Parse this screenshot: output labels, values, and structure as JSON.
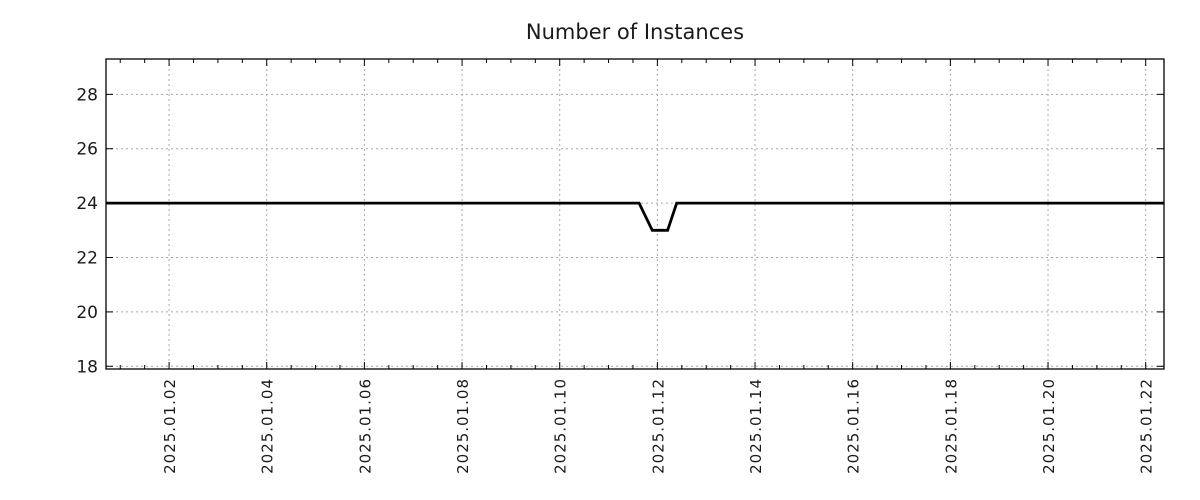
{
  "chart_data": {
    "type": "line",
    "title": "Number of Instances",
    "legend": null,
    "grid": {
      "show": true,
      "color": "#a8a8a8",
      "style": "dashed"
    },
    "border_color": "#000000",
    "background_color": "#ffffff",
    "x_axis": {
      "unit": "date",
      "range": [
        "2024-12-31 17:00",
        "2025-01-22 09:00"
      ],
      "major_tick_step_days": 2,
      "minor_tick_step_days": 0.5,
      "label_rotation_deg": -90,
      "ticks": [
        {
          "day": 2,
          "label": "2025.01.02"
        },
        {
          "day": 4,
          "label": "2025.01.04"
        },
        {
          "day": 6,
          "label": "2025.01.06"
        },
        {
          "day": 8,
          "label": "2025.01.08"
        },
        {
          "day": 10,
          "label": "2025.01.10"
        },
        {
          "day": 12,
          "label": "2025.01.12"
        },
        {
          "day": 14,
          "label": "2025.01.14"
        },
        {
          "day": 16,
          "label": "2025.01.16"
        },
        {
          "day": 18,
          "label": "2025.01.18"
        },
        {
          "day": 20,
          "label": "2025.01.20"
        },
        {
          "day": 22,
          "label": "2025.01.22"
        }
      ]
    },
    "y_axis": {
      "range": [
        17.9,
        29.3
      ],
      "ticks": [
        18,
        20,
        22,
        24,
        26,
        28
      ],
      "tick_labels": [
        "18",
        "20",
        "22",
        "24",
        "26",
        "28"
      ]
    },
    "series": [
      {
        "name": "Number of Instances",
        "color": "#000000",
        "line_width": 2.8,
        "points": [
          [
            "2024-12-31 17:00",
            24
          ],
          [
            "2025-01-11 15:00",
            24
          ],
          [
            "2025-01-11 21:30",
            23
          ],
          [
            "2025-01-12 05:00",
            23
          ],
          [
            "2025-01-12 09:30",
            24
          ],
          [
            "2025-01-22 09:00",
            24
          ]
        ]
      }
    ]
  }
}
